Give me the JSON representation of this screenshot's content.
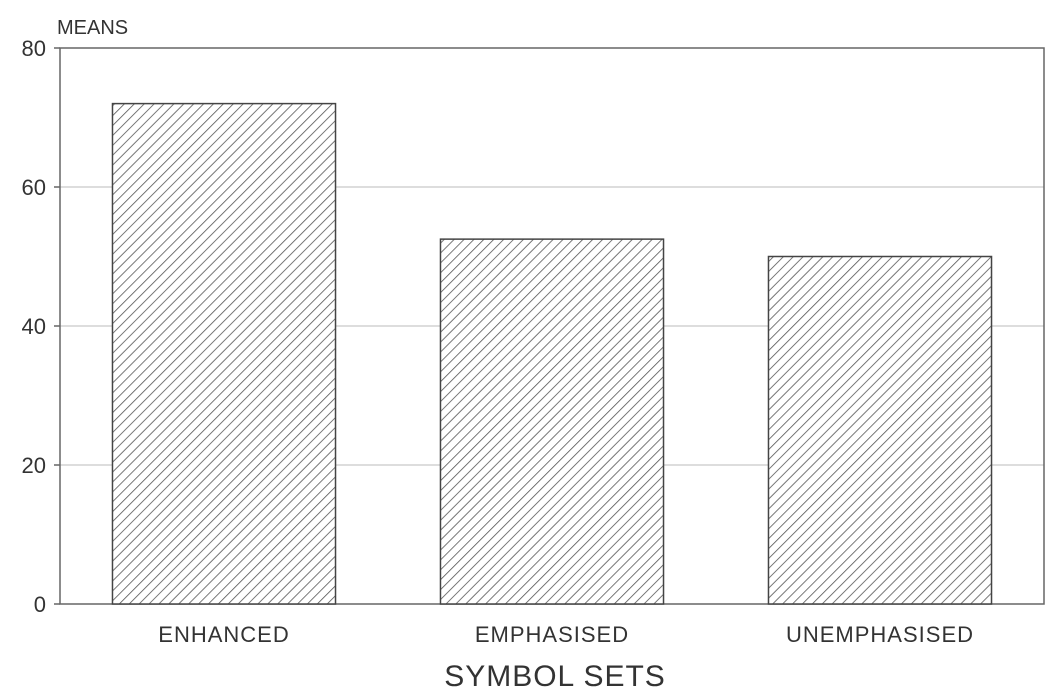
{
  "chart_data": {
    "type": "bar",
    "categories": [
      "ENHANCED",
      "EMPHASISED",
      "UNEMPHASISED"
    ],
    "values": [
      72,
      52.5,
      50
    ],
    "ylabel": "MEANS",
    "xlabel": "SYMBOL SETS",
    "ylim": [
      0,
      80
    ],
    "yticks": [
      0,
      20,
      40,
      60,
      80
    ],
    "grid": "horizontal",
    "bar_pattern": "diagonal-hatch",
    "colors": {
      "bar_fill": "#ffffff",
      "hatch": "#555555",
      "bar_edge": "#444444",
      "grid": "#bbbbbb",
      "frame": "#666666"
    }
  }
}
